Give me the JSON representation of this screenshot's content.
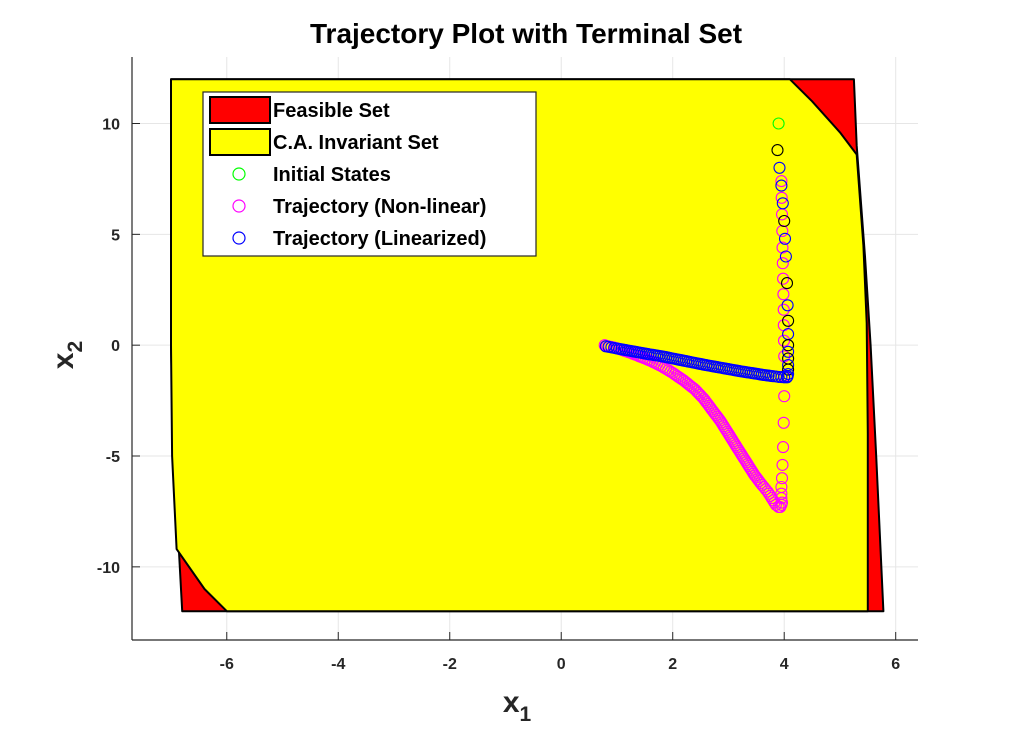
{
  "chart_data": {
    "type": "scatter",
    "title": "Trajectory Plot with Terminal Set",
    "xlabel": "x",
    "xlabel_sub": "1",
    "ylabel": "x",
    "ylabel_sub": "2",
    "xlim": [
      -7.7,
      6.4
    ],
    "ylim": [
      -13.3,
      13.0
    ],
    "xticks": [
      -6,
      -4,
      -2,
      0,
      2,
      4,
      6
    ],
    "yticks": [
      -10,
      -5,
      0,
      5,
      10
    ],
    "grid": true,
    "legend_position": "top-left",
    "legend": [
      {
        "label": "Feasible Set",
        "kind": "patch",
        "color": "#ff0000"
      },
      {
        "label": "C.A. Invariant Set",
        "kind": "patch",
        "color": "#ffff00"
      },
      {
        "label": "Initial States",
        "kind": "marker",
        "color": "#00ff00"
      },
      {
        "label": "Trajectory (Non-linear)",
        "kind": "marker",
        "color": "#ff00ff"
      },
      {
        "label": "Trajectory (Linearized)",
        "kind": "marker",
        "color": "#0000ff"
      }
    ],
    "regions": [
      {
        "name": "Feasible Set",
        "color": "#ff0000",
        "polygon": [
          [
            -7.0,
            12.0
          ],
          [
            5.25,
            12.0
          ],
          [
            5.3,
            9.0
          ],
          [
            5.45,
            4.0
          ],
          [
            5.55,
            0.0
          ],
          [
            5.65,
            -5.0
          ],
          [
            5.78,
            -12.0
          ],
          [
            -6.8,
            -12.0
          ],
          [
            -6.95,
            -5.0
          ],
          [
            -7.0,
            0.0
          ],
          [
            -7.0,
            6.0
          ]
        ]
      },
      {
        "name": "C.A. Invariant Set",
        "color": "#ffff00",
        "polygon": [
          [
            -7.0,
            12.0
          ],
          [
            4.1,
            12.0
          ],
          [
            4.5,
            11.0
          ],
          [
            5.0,
            9.6
          ],
          [
            5.3,
            8.6
          ],
          [
            5.42,
            4.5
          ],
          [
            5.48,
            1.0
          ],
          [
            5.5,
            -4.0
          ],
          [
            5.5,
            -12.0
          ],
          [
            -6.0,
            -12.0
          ],
          [
            -6.4,
            -11.0
          ],
          [
            -6.9,
            -9.2
          ],
          [
            -6.98,
            -5.0
          ],
          [
            -7.0,
            0.0
          ],
          [
            -7.0,
            6.0
          ]
        ]
      }
    ],
    "series": [
      {
        "name": "Initial States",
        "color": "#00ff00",
        "x": [
          3.9
        ],
        "y": [
          10.0
        ]
      },
      {
        "name": "Trajectory (Non-linear)",
        "color": "#ff00ff",
        "x": [
          3.95,
          3.97,
          3.99,
          4.0,
          4.0,
          3.99,
          3.98,
          3.97,
          3.96,
          3.95,
          3.95,
          3.95,
          3.96,
          3.95,
          3.93,
          3.9,
          3.85,
          3.8,
          3.75,
          3.7,
          3.6,
          3.45,
          3.3,
          3.15,
          3.0,
          2.85,
          2.7,
          2.55,
          2.4,
          2.2,
          2.0,
          1.8,
          1.6,
          1.4,
          1.25,
          1.1,
          1.0,
          0.9,
          0.82,
          0.78
        ],
        "y": [
          7.4,
          4.4,
          1.6,
          -0.5,
          -2.3,
          -3.5,
          -4.6,
          -5.4,
          -6.0,
          -6.4,
          -6.7,
          -6.9,
          -7.1,
          -7.2,
          -7.3,
          -7.3,
          -7.2,
          -7.0,
          -6.8,
          -6.6,
          -6.3,
          -5.8,
          -5.2,
          -4.6,
          -4.0,
          -3.4,
          -2.9,
          -2.4,
          -2.0,
          -1.6,
          -1.25,
          -0.95,
          -0.7,
          -0.5,
          -0.35,
          -0.22,
          -0.14,
          -0.08,
          -0.04,
          0.0
        ]
      },
      {
        "name": "Trajectory (Linearized)",
        "color": "#0000ff",
        "x": [
          3.88,
          3.95,
          4.0,
          4.03,
          4.05,
          4.06,
          4.07,
          4.07,
          4.07,
          4.07,
          4.07,
          4.07,
          4.07,
          4.07,
          4.06,
          4.05,
          4.0,
          3.9,
          3.8,
          3.6,
          3.4,
          3.2,
          3.0,
          2.8,
          2.6,
          2.4,
          2.2,
          2.0,
          1.8,
          1.6,
          1.4,
          1.2,
          1.0,
          0.9,
          0.8
        ],
        "y": [
          8.8,
          7.2,
          5.6,
          4.0,
          2.8,
          1.8,
          1.1,
          0.5,
          0.0,
          -0.3,
          -0.6,
          -0.9,
          -1.1,
          -1.3,
          -1.4,
          -1.45,
          -1.45,
          -1.43,
          -1.4,
          -1.33,
          -1.25,
          -1.17,
          -1.08,
          -0.99,
          -0.9,
          -0.8,
          -0.7,
          -0.6,
          -0.5,
          -0.42,
          -0.33,
          -0.24,
          -0.15,
          -0.1,
          -0.05
        ]
      }
    ],
    "series_edge_override": {
      "Trajectory (Linearized)": {
        "first_points_color": "#000000",
        "first_points_count": 14
      }
    }
  }
}
